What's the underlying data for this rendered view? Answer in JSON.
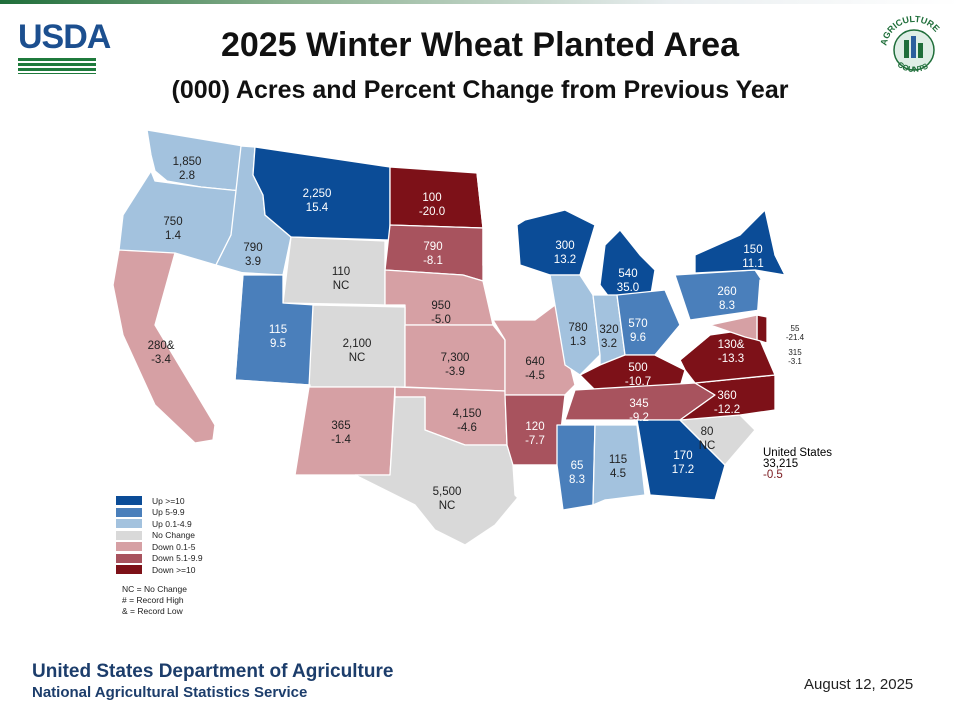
{
  "header": {
    "title": "2025 Winter Wheat Planted Area",
    "subtitle": "(000) Acres and Percent Change from Previous Year",
    "usda_logo_text": "USDA",
    "ag_logo_text": "AGRICULTURE COUNTS"
  },
  "legend": {
    "items": [
      {
        "label": "Up >=10",
        "color": "#0b4c97"
      },
      {
        "label": "Up 5-9.9",
        "color": "#4a7fbb"
      },
      {
        "label": "Up 0.1-4.9",
        "color": "#a3c2de"
      },
      {
        "label": "No Change",
        "color": "#d9d9d9"
      },
      {
        "label": "Down 0.1-5",
        "color": "#d6a0a4"
      },
      {
        "label": "Down 5.1-9.9",
        "color": "#a8535e"
      },
      {
        "label": "Down >=10",
        "color": "#7d1118"
      }
    ],
    "notes": [
      "NC = No Change",
      "# = Record High",
      "& = Record Low"
    ]
  },
  "states": [
    {
      "code": "WA",
      "acres": "1,850",
      "change": "2.8"
    },
    {
      "code": "OR",
      "acres": "750",
      "change": "1.4"
    },
    {
      "code": "ID",
      "acres": "790",
      "change": "3.9"
    },
    {
      "code": "MT",
      "acres": "2,250",
      "change": "15.4"
    },
    {
      "code": "ND",
      "acres": "100",
      "change": "-20.0"
    },
    {
      "code": "SD",
      "acres": "790",
      "change": "-8.1"
    },
    {
      "code": "WY",
      "acres": "110",
      "change": "NC"
    },
    {
      "code": "NE",
      "acres": "950",
      "change": "-5.0"
    },
    {
      "code": "UT",
      "acres": "115",
      "change": "9.5"
    },
    {
      "code": "CO",
      "acres": "2,100",
      "change": "NC"
    },
    {
      "code": "CA",
      "acres": "280&",
      "change": "-3.4"
    },
    {
      "code": "KS",
      "acres": "7,300",
      "change": "-3.9"
    },
    {
      "code": "OK",
      "acres": "4,150",
      "change": "-4.6"
    },
    {
      "code": "NM",
      "acres": "365",
      "change": "-1.4"
    },
    {
      "code": "TX",
      "acres": "5,500",
      "change": "NC"
    },
    {
      "code": "MO",
      "acres": "640",
      "change": "-4.5"
    },
    {
      "code": "AR",
      "acres": "120",
      "change": "-7.7"
    },
    {
      "code": "WI",
      "acres": "300",
      "change": "13.2"
    },
    {
      "code": "MI",
      "acres": "540",
      "change": "35.0"
    },
    {
      "code": "IL",
      "acres": "780",
      "change": "1.3"
    },
    {
      "code": "IN",
      "acres": "320",
      "change": "3.2"
    },
    {
      "code": "OH",
      "acres": "570",
      "change": "9.6"
    },
    {
      "code": "KY",
      "acres": "500",
      "change": "-10.7"
    },
    {
      "code": "TN",
      "acres": "345",
      "change": "-9.2"
    },
    {
      "code": "MS",
      "acres": "65",
      "change": "8.3"
    },
    {
      "code": "AL",
      "acres": "115",
      "change": "4.5"
    },
    {
      "code": "GA",
      "acres": "170",
      "change": "17.2"
    },
    {
      "code": "SC",
      "acres": "80",
      "change": "NC"
    },
    {
      "code": "NC",
      "acres": "360",
      "change": "-12.2"
    },
    {
      "code": "VA",
      "acres": "130&",
      "change": "-13.3"
    },
    {
      "code": "PA",
      "acres": "260",
      "change": "8.3"
    },
    {
      "code": "NY",
      "acres": "150",
      "change": "11.1"
    },
    {
      "code": "DE",
      "acres": "55",
      "change": "-21.4"
    },
    {
      "code": "MD",
      "acres": "315",
      "change": "-3.1"
    }
  ],
  "us_total": {
    "label": "United States",
    "acres": "33,215",
    "change": "-0.5"
  },
  "footer": {
    "department": "United States Department of Agriculture",
    "agency": "National Agricultural Statistics Service",
    "date": "August 12, 2025"
  }
}
